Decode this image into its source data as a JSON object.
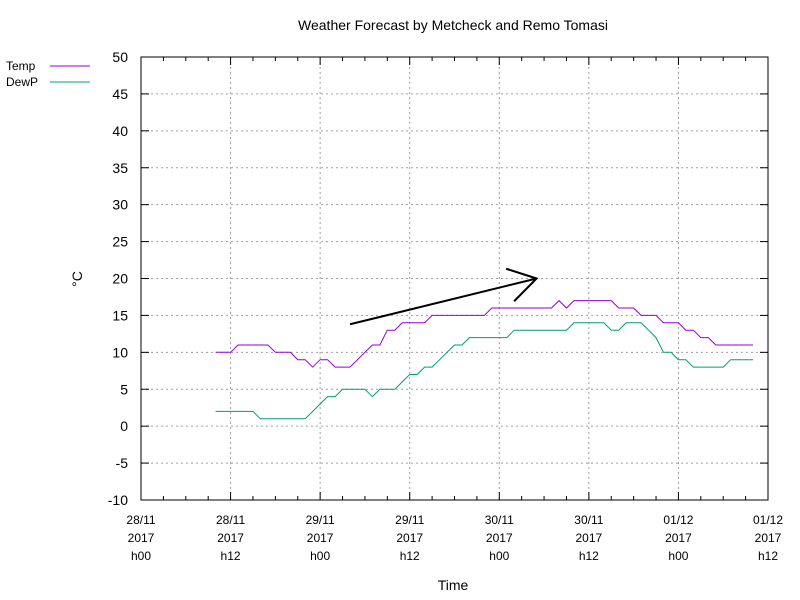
{
  "chart_data": {
    "type": "line",
    "title": "Weather Forecast by Metcheck and Remo Tomasi",
    "xlabel": "Time",
    "ylabel": "°C",
    "ylim": [
      -10,
      50
    ],
    "yticks": [
      -10,
      -5,
      0,
      5,
      10,
      15,
      20,
      25,
      30,
      35,
      40,
      45,
      50
    ],
    "xlim": [
      0,
      84
    ],
    "xticks": [
      {
        "h": 0,
        "lines": [
          "28/11",
          "2017",
          "h00"
        ]
      },
      {
        "h": 12,
        "lines": [
          "28/11",
          "2017",
          "h12"
        ]
      },
      {
        "h": 24,
        "lines": [
          "29/11",
          "2017",
          "h00"
        ]
      },
      {
        "h": 36,
        "lines": [
          "29/11",
          "2017",
          "h12"
        ]
      },
      {
        "h": 48,
        "lines": [
          "30/11",
          "2017",
          "h00"
        ]
      },
      {
        "h": 60,
        "lines": [
          "30/11",
          "2017",
          "h12"
        ]
      },
      {
        "h": 72,
        "lines": [
          "01/12",
          "2017",
          "h00"
        ]
      },
      {
        "h": 84,
        "lines": [
          "01/12",
          "2017",
          "h12"
        ]
      }
    ],
    "grid": true,
    "legend_position": "top-left",
    "series": [
      {
        "name": "Temp",
        "color": "#9400d3",
        "points": [
          [
            10,
            10
          ],
          [
            12,
            10
          ],
          [
            13,
            11
          ],
          [
            17,
            11
          ],
          [
            18,
            10
          ],
          [
            20,
            10
          ],
          [
            21,
            9
          ],
          [
            22,
            9
          ],
          [
            23,
            8
          ],
          [
            24,
            9
          ],
          [
            25,
            9
          ],
          [
            26,
            8
          ],
          [
            28,
            8
          ],
          [
            30,
            10
          ],
          [
            31,
            11
          ],
          [
            32,
            11
          ],
          [
            33,
            13
          ],
          [
            34,
            13
          ],
          [
            35,
            14
          ],
          [
            38,
            14
          ],
          [
            39,
            15
          ],
          [
            46,
            15
          ],
          [
            47,
            16
          ],
          [
            55,
            16
          ],
          [
            56,
            17
          ],
          [
            57,
            16
          ],
          [
            58,
            17
          ],
          [
            63,
            17
          ],
          [
            64,
            16
          ],
          [
            66,
            16
          ],
          [
            67,
            15
          ],
          [
            69,
            15
          ],
          [
            70,
            14
          ],
          [
            72,
            14
          ],
          [
            73,
            13
          ],
          [
            74,
            13
          ],
          [
            75,
            12
          ],
          [
            76,
            12
          ],
          [
            77,
            11
          ],
          [
            82,
            11
          ]
        ]
      },
      {
        "name": "DewP",
        "color": "#009e73",
        "points": [
          [
            10,
            2
          ],
          [
            15,
            2
          ],
          [
            16,
            1
          ],
          [
            22,
            1
          ],
          [
            23,
            2
          ],
          [
            25,
            4
          ],
          [
            26,
            4
          ],
          [
            27,
            5
          ],
          [
            30,
            5
          ],
          [
            31,
            4
          ],
          [
            32,
            5
          ],
          [
            34,
            5
          ],
          [
            35,
            6
          ],
          [
            36,
            7
          ],
          [
            37,
            7
          ],
          [
            38,
            8
          ],
          [
            39,
            8
          ],
          [
            40,
            9
          ],
          [
            41,
            10
          ],
          [
            42,
            11
          ],
          [
            43,
            11
          ],
          [
            44,
            12
          ],
          [
            49,
            12
          ],
          [
            50,
            13
          ],
          [
            57,
            13
          ],
          [
            58,
            14
          ],
          [
            62,
            14
          ],
          [
            63,
            13
          ],
          [
            64,
            13
          ],
          [
            65,
            14
          ],
          [
            67,
            14
          ],
          [
            68,
            13
          ],
          [
            69,
            12
          ],
          [
            70,
            10
          ],
          [
            71,
            10
          ],
          [
            72,
            9
          ],
          [
            73,
            9
          ],
          [
            74,
            8
          ],
          [
            78,
            8
          ],
          [
            79,
            9
          ],
          [
            82,
            9
          ]
        ]
      }
    ],
    "annotation": {
      "type": "arrow",
      "from": [
        28,
        13.8
      ],
      "to": [
        53,
        20
      ]
    }
  }
}
